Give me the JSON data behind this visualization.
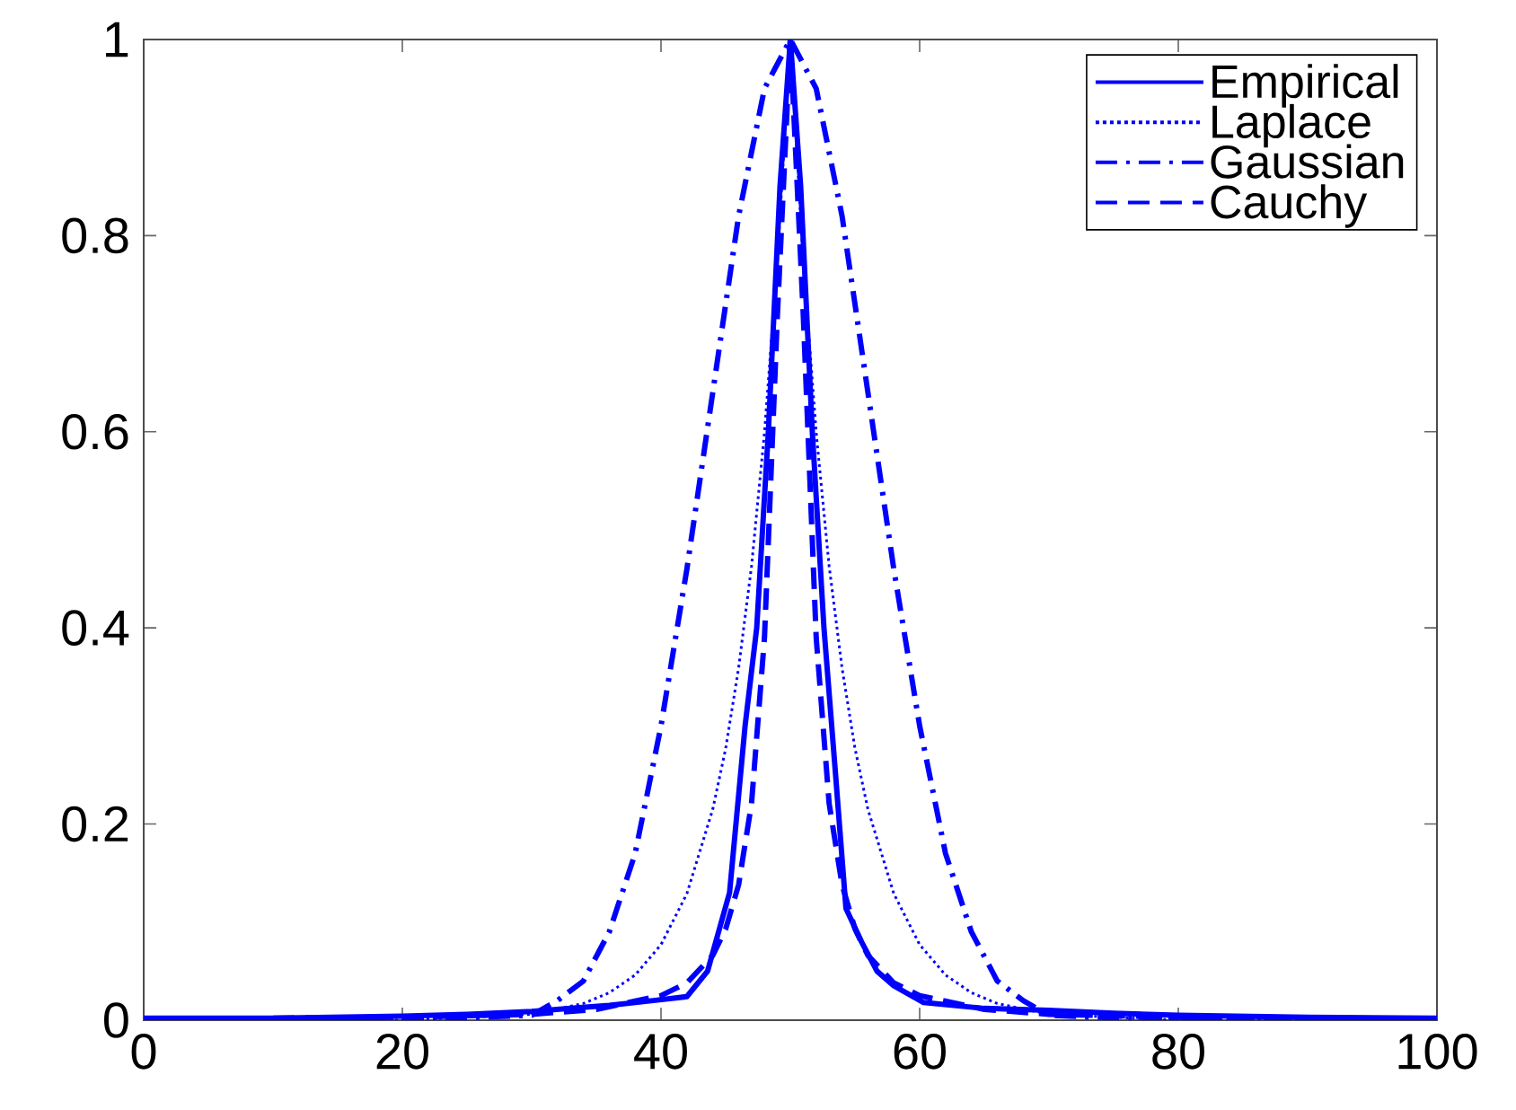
{
  "chart_data": {
    "type": "line",
    "xlim": [
      0,
      100
    ],
    "ylim": [
      0,
      1
    ],
    "xticks": [
      0,
      20,
      40,
      60,
      80,
      100
    ],
    "yticks": [
      0,
      0.2,
      0.4,
      0.6,
      0.8,
      1
    ],
    "legend": "top right",
    "series": [
      {
        "name": "Empirical",
        "color": "#0000ff",
        "line_style": "solid",
        "x": [
          0,
          10,
          20,
          25,
          30,
          33,
          36,
          39.4,
          42,
          43.6,
          45.3,
          46.5,
          47.4,
          48.3,
          49.2,
          50,
          50.8,
          51.7,
          52.6,
          53.5,
          54.3,
          55.5,
          56.7,
          58,
          60.3,
          65,
          70,
          75,
          80,
          90,
          100
        ],
        "values": [
          0.002,
          0.002,
          0.004,
          0.006,
          0.009,
          0.012,
          0.015,
          0.02,
          0.024,
          0.05,
          0.13,
          0.3,
          0.4,
          0.6,
          0.85,
          1,
          0.85,
          0.6,
          0.4,
          0.25,
          0.114,
          0.08,
          0.05,
          0.035,
          0.018,
          0.012,
          0.01,
          0.007,
          0.005,
          0.003,
          0.002
        ]
      },
      {
        "name": "Laplace",
        "color": "#0000ff",
        "line_style": "dotted",
        "x": [
          0,
          10,
          20,
          30,
          34,
          36,
          38,
          40,
          42,
          44,
          45,
          46,
          47,
          48,
          49,
          50,
          51,
          52,
          53,
          54,
          55,
          56,
          58,
          60,
          62,
          64,
          66,
          70,
          80,
          90,
          100
        ],
        "values": [
          0,
          0,
          0,
          0.006,
          0.017,
          0.028,
          0.046,
          0.077,
          0.129,
          0.215,
          0.277,
          0.359,
          0.463,
          0.599,
          0.774,
          1,
          0.774,
          0.599,
          0.463,
          0.359,
          0.277,
          0.215,
          0.129,
          0.077,
          0.046,
          0.028,
          0.017,
          0.006,
          0,
          0,
          0
        ]
      },
      {
        "name": "Gaussian",
        "color": "#0000ff",
        "line_style": "dashdot",
        "x": [
          0,
          10,
          20,
          30,
          32,
          34,
          36,
          38,
          40,
          42,
          44,
          46,
          48,
          50,
          52,
          54,
          56,
          58,
          60,
          62,
          64,
          66,
          68,
          70,
          80,
          90,
          100
        ],
        "values": [
          0,
          0,
          0,
          0.005,
          0.02,
          0.04,
          0.09,
          0.17,
          0.3,
          0.46,
          0.64,
          0.82,
          0.95,
          1,
          0.95,
          0.82,
          0.64,
          0.46,
          0.3,
          0.17,
          0.09,
          0.04,
          0.02,
          0.005,
          0,
          0,
          0
        ]
      },
      {
        "name": "Cauchy",
        "color": "#0000ff",
        "line_style": "dashed",
        "x": [
          0,
          10,
          20,
          30,
          35,
          40,
          42,
          44,
          45,
          46,
          47,
          48,
          49,
          50,
          51,
          52,
          53,
          54,
          55,
          56,
          58,
          60,
          65,
          70,
          80,
          90,
          100
        ],
        "values": [
          0.001,
          0.002,
          0.003,
          0.006,
          0.011,
          0.025,
          0.038,
          0.066,
          0.093,
          0.138,
          0.221,
          0.39,
          0.719,
          1,
          0.719,
          0.39,
          0.221,
          0.138,
          0.093,
          0.066,
          0.038,
          0.025,
          0.011,
          0.006,
          0.003,
          0.002,
          0.001
        ]
      }
    ]
  }
}
